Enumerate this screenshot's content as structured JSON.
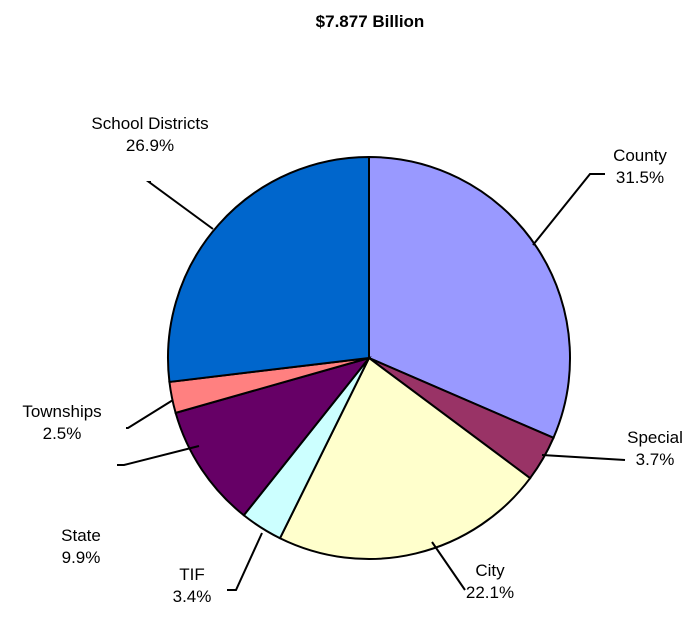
{
  "chart_data": {
    "type": "pie",
    "title": "$7.877 Billion",
    "start_angle_deg": 0,
    "direction": "clockwise",
    "slices": [
      {
        "name": "County",
        "value": 31.5,
        "label": "31.5%",
        "color": "#9999ff"
      },
      {
        "name": "Special",
        "value": 3.7,
        "label": "3.7%",
        "color": "#993366"
      },
      {
        "name": "City",
        "value": 22.1,
        "label": "22.1%",
        "color": "#ffffcc"
      },
      {
        "name": "TIF",
        "value": 3.4,
        "label": "3.4%",
        "color": "#ccffff"
      },
      {
        "name": "State",
        "value": 9.9,
        "label": "9.9%",
        "color": "#660066"
      },
      {
        "name": "Townships",
        "value": 2.5,
        "label": "2.5%",
        "color": "#ff8080"
      },
      {
        "name": "School Districts",
        "value": 26.9,
        "label": "26.9%",
        "color": "#0066cc"
      }
    ]
  }
}
